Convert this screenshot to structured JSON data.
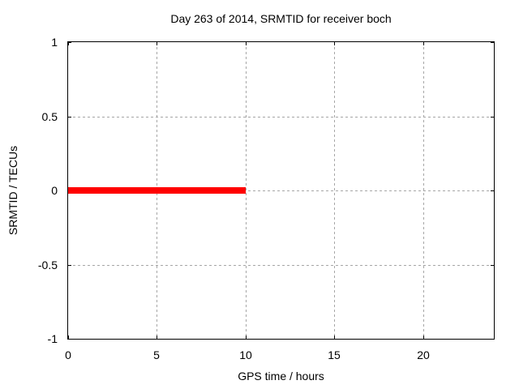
{
  "title": "Day 263 of 2014, SRMTID for receiver boch",
  "xlabel": "GPS time / hours",
  "ylabel": "SRMTID / TECUs",
  "colors": {
    "background": "#ffffff",
    "border": "#000000",
    "grid": "#a6a6a6",
    "text": "#000000",
    "series": "#ff0000"
  },
  "chart_data": {
    "type": "line",
    "title": "Day 263 of 2014, SRMTID for receiver boch",
    "xlabel": "GPS time / hours",
    "ylabel": "SRMTID / TECUs",
    "xlim": [
      0,
      24
    ],
    "ylim": [
      -1,
      1
    ],
    "xticks": [
      0,
      5,
      10,
      15,
      20
    ],
    "yticks": [
      -1,
      -0.5,
      0,
      0.5,
      1
    ],
    "grid": true,
    "legend": "none",
    "series": [
      {
        "name": "SRMTID",
        "color": "#ff0000",
        "linewidth": 8,
        "points": [
          [
            0,
            0
          ],
          [
            10,
            0
          ]
        ]
      }
    ]
  }
}
